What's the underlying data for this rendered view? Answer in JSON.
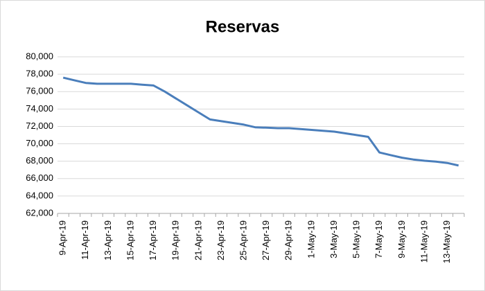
{
  "chart_data": {
    "type": "line",
    "title": "Reservas",
    "categories": [
      "9-Apr-19",
      null,
      "11-Apr-19",
      null,
      "13-Apr-19",
      null,
      "15-Apr-19",
      null,
      "17-Apr-19",
      null,
      "19-Apr-19",
      null,
      "21-Apr-19",
      null,
      "23-Apr-19",
      null,
      "25-Apr-19",
      null,
      "27-Apr-19",
      null,
      "29-Apr-19",
      null,
      "1-May-19",
      null,
      "3-May-19",
      null,
      "5-May-19",
      null,
      "7-May-19",
      null,
      "9-May-19",
      null,
      "11-May-19",
      null,
      "13-May-19",
      null
    ],
    "series": [
      {
        "name": "Reservas",
        "color": "#4a7ebb",
        "values": [
          77600,
          77300,
          77000,
          76900,
          76900,
          76900,
          76900,
          76800,
          76700,
          76000,
          75200,
          74400,
          73600,
          72800,
          72600,
          72400,
          72200,
          71900,
          71850,
          71800,
          71800,
          71700,
          71600,
          71500,
          71400,
          71200,
          71000,
          70800,
          69000,
          68700,
          68400,
          68200,
          68050,
          67950,
          67800,
          67500
        ]
      }
    ],
    "ylim": [
      62000,
      80000
    ],
    "yticks": [
      {
        "value": 62000,
        "label": "62,000"
      },
      {
        "value": 64000,
        "label": "64,000"
      },
      {
        "value": 66000,
        "label": "66,000"
      },
      {
        "value": 68000,
        "label": "68,000"
      },
      {
        "value": 70000,
        "label": "70,000"
      },
      {
        "value": 72000,
        "label": "72,000"
      },
      {
        "value": 74000,
        "label": "74,000"
      },
      {
        "value": 76000,
        "label": "76,000"
      },
      {
        "value": 78000,
        "label": "78,000"
      },
      {
        "value": 80000,
        "label": "80,000"
      }
    ],
    "grid": true
  }
}
